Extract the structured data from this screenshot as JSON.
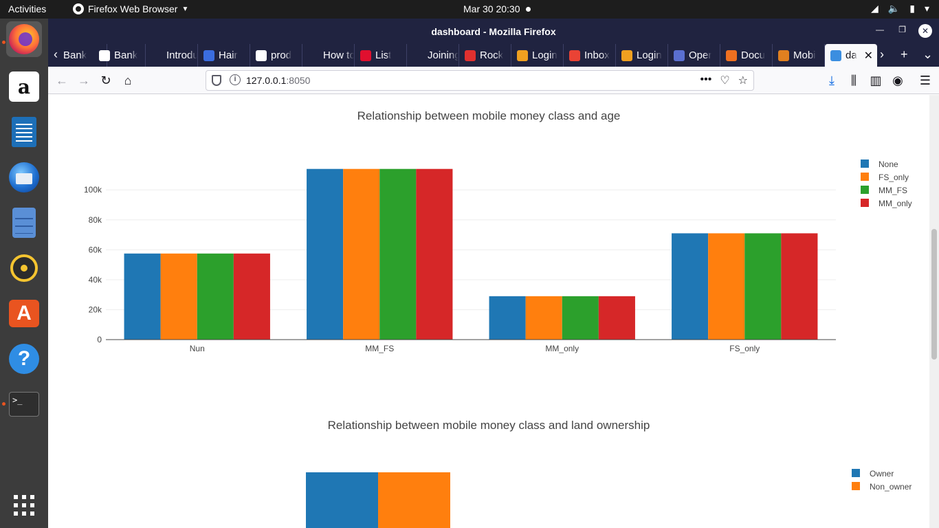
{
  "topbar": {
    "activities": "Activities",
    "app_menu": "Firefox Web Browser",
    "clock": "Mar 30  20:30"
  },
  "dock": {
    "items": [
      "firefox-icon",
      "amazon-icon",
      "libreoffice-writer-icon",
      "thunderbird-icon",
      "files-icon",
      "rhythmbox-icon",
      "ubuntu-software-icon",
      "help-icon",
      "terminal-icon",
      "show-apps-icon"
    ],
    "amazon_glyph": "a",
    "store_glyph": "A",
    "help_glyph": "?",
    "terminal_glyph": ">_"
  },
  "window": {
    "title": "dashboard - Mozilla Firefox"
  },
  "tabs": [
    {
      "label": "Bank",
      "favicon_color": "#202340"
    },
    {
      "label": "Bank",
      "favicon_color": "#ffffff"
    },
    {
      "label": "Introduc",
      "favicon_color": "#202340"
    },
    {
      "label": "Hair",
      "favicon_color": "#3b6de0"
    },
    {
      "label": "prod",
      "favicon_color": "#ffffff"
    },
    {
      "label": "How to",
      "favicon_color": "#202340"
    },
    {
      "label": "List",
      "favicon_color": "#e0102f"
    },
    {
      "label": "Joining",
      "favicon_color": "#202340"
    },
    {
      "label": "Rock",
      "favicon_color": "#e0302f"
    },
    {
      "label": "Login",
      "favicon_color": "#f0a020"
    },
    {
      "label": "Inbox",
      "favicon_color": "#ea4335"
    },
    {
      "label": "Login",
      "favicon_color": "#f0a020"
    },
    {
      "label": "Oper",
      "favicon_color": "#5a6fd0"
    },
    {
      "label": "Docu",
      "favicon_color": "#f07020"
    },
    {
      "label": "Mobi",
      "favicon_color": "#e08020"
    },
    {
      "label": "da",
      "favicon_color": "#3b8ee0"
    }
  ],
  "navbar": {
    "url_host": "127.0.0.1",
    "url_port": ":8050"
  },
  "colors": {
    "blue": "#1f77b4",
    "orange": "#ff7f0e",
    "green": "#2ca02c",
    "red": "#d62728"
  },
  "chart_data": [
    {
      "type": "bar",
      "title": "Relationship between mobile money class and age",
      "categories": [
        "Nun",
        "MM_FS",
        "MM_only",
        "FS_only"
      ],
      "series": [
        {
          "name": "None",
          "values": [
            57500,
            114000,
            29000,
            71000
          ]
        },
        {
          "name": "FS_only",
          "values": [
            57500,
            114000,
            29000,
            71000
          ]
        },
        {
          "name": "MM_FS",
          "values": [
            57500,
            114000,
            29000,
            71000
          ]
        },
        {
          "name": "MM_only",
          "values": [
            57500,
            114000,
            29000,
            71000
          ]
        }
      ],
      "yticks": [
        0,
        20000,
        40000,
        60000,
        80000,
        100000
      ],
      "ytick_labels": [
        "0",
        "20k",
        "40k",
        "60k",
        "80k",
        "100k"
      ],
      "ylim": [
        0,
        118000
      ],
      "grid": true,
      "legend": "top-right"
    },
    {
      "type": "bar",
      "title": "Relationship between mobile money class and land ownership",
      "categories": [],
      "series": [
        {
          "name": "Owner",
          "values": []
        },
        {
          "name": "Non_owner",
          "values": []
        }
      ],
      "legend": "top-right"
    }
  ]
}
